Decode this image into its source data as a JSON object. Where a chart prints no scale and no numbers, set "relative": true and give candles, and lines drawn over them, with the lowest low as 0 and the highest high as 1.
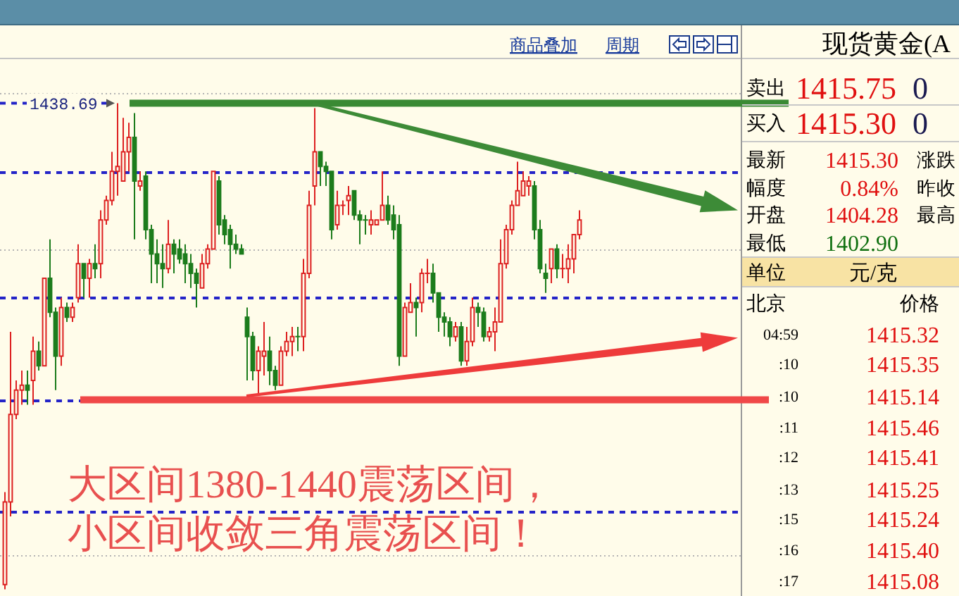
{
  "chart_data": [
    {
      "type": "candlestick",
      "relative": true,
      "categories": [
        null,
        null,
        null,
        null,
        null,
        null,
        null,
        null,
        null,
        null,
        null,
        null,
        null,
        null,
        null,
        null,
        null,
        null,
        null,
        null,
        null,
        null,
        null,
        null,
        null,
        null,
        null,
        null,
        null,
        null,
        null,
        null,
        null,
        null,
        null,
        null,
        null,
        null,
        null,
        null,
        null,
        null,
        null,
        null,
        null,
        null,
        null,
        null,
        null,
        null,
        null,
        null,
        null,
        null,
        null,
        null,
        null,
        null,
        null,
        null,
        null,
        null,
        null,
        null,
        null,
        null,
        null,
        null,
        null,
        null,
        null,
        null,
        null,
        null,
        null,
        null,
        null,
        null,
        null,
        null,
        null,
        null,
        null,
        null,
        null,
        null,
        null,
        null,
        null,
        null,
        null,
        null,
        null,
        null,
        null,
        null,
        null,
        null,
        null,
        null,
        null,
        null,
        null
      ],
      "ohlc": [
        [
          0.01,
          0.2,
          0,
          0.18
        ],
        [
          0.18,
          0.53,
          0.15,
          0.36
        ],
        [
          0.36,
          0.43,
          0.35,
          0.41
        ],
        [
          0.41,
          0.45,
          0.38,
          0.42
        ],
        [
          0.42,
          0.45,
          0.38,
          0.41
        ],
        [
          0.43,
          0.52,
          0.38,
          0.49
        ],
        [
          0.49,
          0.51,
          0.45,
          0.46
        ],
        [
          0.46,
          0.64,
          0.46,
          0.64
        ],
        [
          0.64,
          0.72,
          0.56,
          0.57
        ],
        [
          0.57,
          0.58,
          0.41,
          0.48
        ],
        [
          0.48,
          0.6,
          0.46,
          0.58
        ],
        [
          0.58,
          0.59,
          0.55,
          0.56
        ],
        [
          0.56,
          0.59,
          0.55,
          0.58
        ],
        [
          0.6,
          0.71,
          0.59,
          0.67
        ],
        [
          0.67,
          0.67,
          0.6,
          0.64
        ],
        [
          0.64,
          0.68,
          0.6,
          0.67
        ],
        [
          0.67,
          0.71,
          0.64,
          0.66
        ],
        [
          0.67,
          0.78,
          0.64,
          0.76
        ],
        [
          0.76,
          0.81,
          0.75,
          0.8
        ],
        [
          0.8,
          0.9,
          0.79,
          0.86
        ],
        [
          0.86,
          1,
          0.81,
          0.87
        ],
        [
          0.84,
          0.97,
          0.84,
          0.9
        ],
        [
          0.9,
          0.96,
          0.86,
          0.93
        ],
        [
          0.93,
          0.98,
          0.72,
          0.84
        ],
        [
          0.83,
          0.86,
          0.82,
          0.84
        ],
        [
          0.85,
          0.86,
          0.72,
          0.74
        ],
        [
          0.74,
          0.75,
          0.63,
          0.69
        ],
        [
          0.69,
          0.72,
          0.63,
          0.67
        ],
        [
          0.67,
          0.71,
          0.62,
          0.66
        ],
        [
          0.66,
          0.76,
          0.65,
          0.71
        ],
        [
          0.71,
          0.72,
          0.65,
          0.69
        ],
        [
          0.7,
          0.72,
          0.67,
          0.68
        ],
        [
          0.69,
          0.71,
          0.63,
          0.67
        ],
        [
          0.67,
          0.69,
          0.62,
          0.65
        ],
        [
          0.65,
          0.66,
          0.58,
          0.63
        ],
        [
          0.62,
          0.69,
          0.62,
          0.67
        ],
        [
          0.67,
          0.71,
          0.66,
          0.7
        ],
        [
          0.7,
          0.86,
          0.7,
          0.86
        ],
        [
          0.84,
          0.85,
          0.73,
          0.75
        ],
        [
          0.76,
          0.77,
          0.71,
          0.73
        ],
        [
          0.74,
          0.75,
          0.66,
          0.71
        ],
        [
          0.71,
          0.73,
          0.69,
          0.7
        ],
        [
          0.7,
          0.71,
          0.69,
          0.69
        ],
        [
          0.56,
          0.58,
          0.43,
          0.52
        ],
        [
          0.52,
          0.53,
          0.43,
          0.45
        ],
        [
          0.45,
          0.5,
          0.4,
          0.49
        ],
        [
          0.48,
          0.55,
          0.44,
          0.49
        ],
        [
          0.49,
          0.52,
          0.42,
          0.45
        ],
        [
          0.45,
          0.46,
          0.41,
          0.42
        ],
        [
          0.42,
          0.5,
          0.42,
          0.49
        ],
        [
          0.49,
          0.53,
          0.48,
          0.51
        ],
        [
          0.51,
          0.54,
          0.48,
          0.52
        ],
        [
          0.52,
          0.54,
          0.49,
          0.52
        ],
        [
          0.52,
          0.68,
          0.49,
          0.65
        ],
        [
          0.65,
          0.82,
          0.64,
          0.79
        ],
        [
          0.83,
          0.99,
          0.79,
          0.9
        ],
        [
          0.9,
          0.9,
          0.83,
          0.87
        ],
        [
          0.87,
          0.88,
          0.83,
          0.86
        ],
        [
          0.86,
          0.86,
          0.72,
          0.74
        ],
        [
          0.75,
          0.82,
          0.74,
          0.79
        ],
        [
          0.79,
          0.8,
          0.77,
          0.79
        ],
        [
          0.8,
          0.83,
          0.77,
          0.81
        ],
        [
          0.82,
          0.82,
          0.76,
          0.77
        ],
        [
          0.77,
          0.78,
          0.71,
          0.76
        ],
        [
          0.76,
          0.77,
          0.73,
          0.76
        ],
        [
          0.75,
          0.78,
          0.73,
          0.76
        ],
        [
          0.75,
          0.76,
          0.75,
          0.76
        ],
        [
          0.76,
          0.86,
          0.76,
          0.79
        ],
        [
          0.79,
          0.81,
          0.75,
          0.76
        ],
        [
          0.77,
          0.79,
          0.72,
          0.74
        ],
        [
          0.75,
          0.77,
          0.46,
          0.48
        ],
        [
          0.48,
          0.59,
          0.48,
          0.58
        ],
        [
          0.57,
          0.63,
          0.57,
          0.59
        ],
        [
          0.59,
          0.6,
          0.52,
          0.58
        ],
        [
          0.59,
          0.66,
          0.57,
          0.65
        ],
        [
          0.65,
          0.68,
          0.63,
          0.65
        ],
        [
          0.65,
          0.67,
          0.59,
          0.61
        ],
        [
          0.61,
          0.61,
          0.53,
          0.56
        ],
        [
          0.56,
          0.57,
          0.52,
          0.55
        ],
        [
          0.55,
          0.56,
          0.5,
          0.52
        ],
        [
          0.52,
          0.55,
          0.51,
          0.54
        ],
        [
          0.54,
          0.55,
          0.46,
          0.47
        ],
        [
          0.47,
          0.54,
          0.46,
          0.51
        ],
        [
          0.51,
          0.6,
          0.5,
          0.58
        ],
        [
          0.58,
          0.59,
          0.54,
          0.57
        ],
        [
          0.57,
          0.58,
          0.51,
          0.52
        ],
        [
          0.52,
          0.54,
          0.51,
          0.53
        ],
        [
          0.53,
          0.58,
          0.49,
          0.55
        ],
        [
          0.55,
          0.72,
          0.55,
          0.67
        ],
        [
          0.67,
          0.75,
          0.66,
          0.74
        ],
        [
          0.74,
          0.8,
          0.73,
          0.79
        ],
        [
          0.79,
          0.88,
          0.79,
          0.82
        ],
        [
          0.81,
          0.86,
          0.81,
          0.84
        ],
        [
          0.83,
          0.85,
          0.81,
          0.84
        ],
        [
          0.83,
          0.84,
          0.72,
          0.74
        ],
        [
          0.74,
          0.76,
          0.65,
          0.66
        ],
        [
          0.65,
          0.67,
          0.61,
          0.64
        ],
        [
          0.66,
          0.7,
          0.63,
          0.7
        ],
        [
          0.7,
          0.71,
          0.64,
          0.66
        ],
        [
          0.66,
          0.69,
          0.64,
          0.66
        ],
        [
          0.66,
          0.71,
          0.63,
          0.68
        ],
        [
          0.68,
          0.73,
          0.65,
          0.73
        ],
        [
          0.73,
          0.78,
          0.72,
          0.76
        ]
      ],
      "colors": [
        "#dd2020",
        "#dd2020",
        "#dd2020",
        "#dd2020",
        "#1c7c1c",
        "#dd2020",
        "#1c7c1c",
        "#dd2020",
        "#1c7c1c",
        "#1c7c1c",
        "#dd2020",
        "#1c7c1c",
        "#dd2020",
        "#dd2020",
        "#1c7c1c",
        "#dd2020",
        "#1c7c1c",
        "#dd2020",
        "#dd2020",
        "#dd2020",
        "#dd2020",
        "#dd2020",
        "#dd2020",
        "#1c7c1c",
        "#dd2020",
        "#1c7c1c",
        "#1c7c1c",
        "#1c7c1c",
        "#1c7c1c",
        "#dd2020",
        "#1c7c1c",
        "#1c7c1c",
        "#1c7c1c",
        "#1c7c1c",
        "#1c7c1c",
        "#dd2020",
        "#dd2020",
        "#dd2020",
        "#1c7c1c",
        "#1c7c1c",
        "#1c7c1c",
        "#1c7c1c",
        "#1c7c1c",
        "#1c7c1c",
        "#1c7c1c",
        "#dd2020",
        "#dd2020",
        "#1c7c1c",
        "#1c7c1c",
        "#dd2020",
        "#dd2020",
        "#dd2020",
        "#1c7c1c",
        "#dd2020",
        "#dd2020",
        "#dd2020",
        "#1c7c1c",
        "#1c7c1c",
        "#1c7c1c",
        "#dd2020",
        "#dd2020",
        "#dd2020",
        "#1c7c1c",
        "#1c7c1c",
        "#1c7c1c",
        "#dd2020",
        "#dd2020",
        "#dd2020",
        "#1c7c1c",
        "#1c7c1c",
        "#1c7c1c",
        "#dd2020",
        "#dd2020",
        "#1c7c1c",
        "#dd2020",
        "#dd2020",
        "#1c7c1c",
        "#1c7c1c",
        "#1c7c1c",
        "#1c7c1c",
        "#dd2020",
        "#1c7c1c",
        "#dd2020",
        "#dd2020",
        "#1c7c1c",
        "#1c7c1c",
        "#dd2020",
        "#dd2020",
        "#dd2020",
        "#dd2020",
        "#dd2020",
        "#dd2020",
        "#dd2020",
        "#dd2020",
        "#1c7c1c",
        "#1c7c1c",
        "#1c7c1c",
        "#dd2020",
        "#1c7c1c",
        "#dd2020",
        "#dd2020",
        "#dd2020",
        "#dd2020"
      ],
      "ref_lines": [
        {
          "axis": "y",
          "value": 1.02,
          "color": "#b4b4b4",
          "line_style": "dotted"
        },
        {
          "axis": "y",
          "value": 0.7,
          "color": "#b4b4b4",
          "line_style": "dotted"
        },
        {
          "axis": "y",
          "value": 0.07,
          "color": "#b4b4b4",
          "line_style": "dotted"
        },
        {
          "axis": "y",
          "value": 0.86,
          "color": "#2424c8",
          "line_style": "dashed"
        },
        {
          "axis": "y",
          "value": 0.6,
          "color": "#2424c8",
          "line_style": "dashed"
        },
        {
          "axis": "y",
          "value": 0.39,
          "color": "#2424c8",
          "line_style": "dashed"
        },
        {
          "axis": "y",
          "value": 0.16,
          "color": "#2424c8",
          "line_style": "dashed"
        },
        {
          "axis": "y",
          "value": 1,
          "color": "#3a8a34",
          "line_style": "solid"
        },
        {
          "axis": "y",
          "value": 0.39,
          "color": "#f04848",
          "line_style": "solid"
        }
      ],
      "annotations": [
        "商品叠加",
        "周期",
        "大区间1380-1440震荡区间，",
        "小区间收敛三角震荡区间！",
        "1438.69"
      ]
    },
    {
      "type": "other",
      "title": "现货黄金(A",
      "annotations": [
        "卖出",
        "1415.75",
        "0",
        "买入",
        "1415.30",
        "0",
        "最新",
        "1415.30",
        "涨跌",
        "幅度",
        "0.84%",
        "昨收",
        "开盘",
        "1404.28",
        "最高",
        "最低",
        "1402.90",
        "单位",
        "元/克",
        "北京",
        "价格",
        "04:59",
        "1415.32",
        ":10",
        "1415.35",
        ":10",
        "1415.14",
        ":11",
        "1415.46",
        ":12",
        "1415.41",
        ":13",
        "1415.25",
        ":15",
        "1415.24",
        ":16",
        "1415.40",
        ":17",
        "1415.08"
      ]
    }
  ]
}
